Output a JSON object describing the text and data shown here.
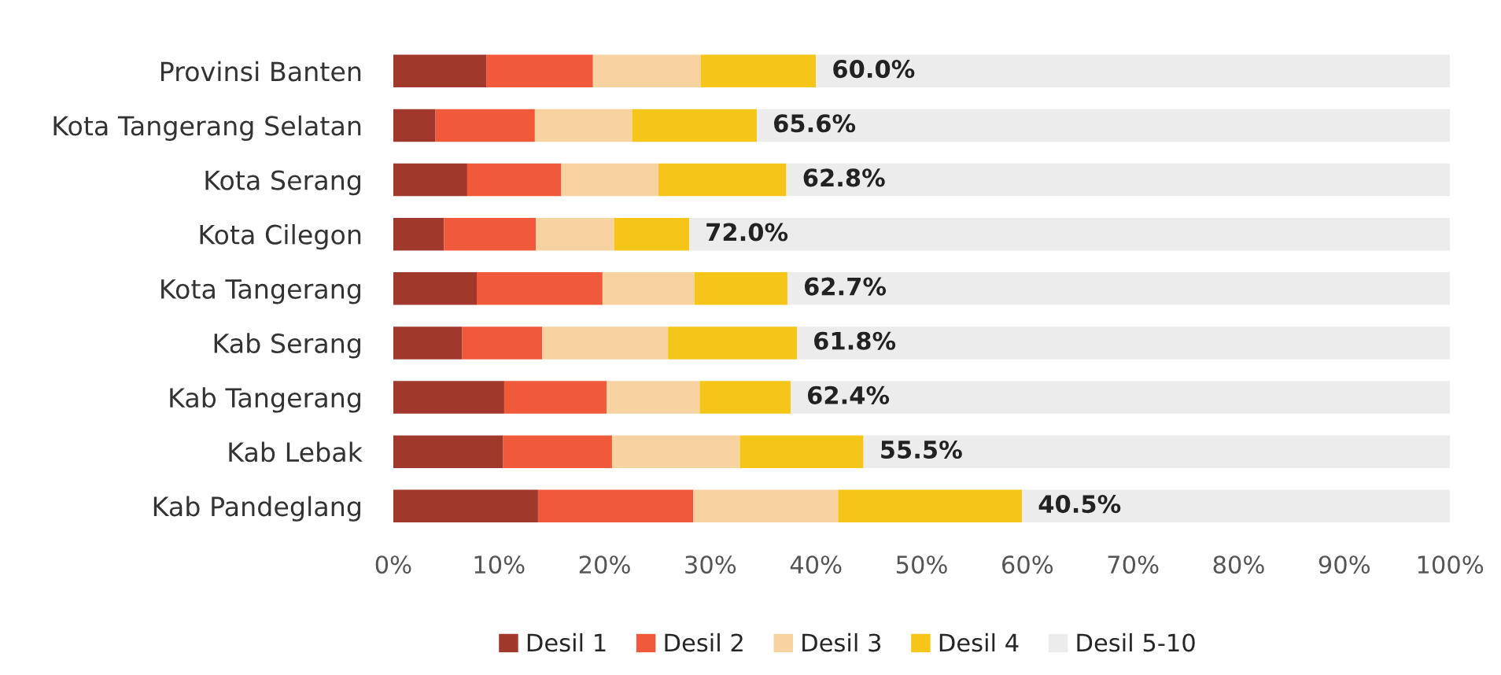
{
  "chart_data": {
    "type": "bar",
    "orientation": "horizontal",
    "stacked": true,
    "categories": [
      "Provinsi Banten",
      "Kota Tangerang Selatan",
      "Kota Serang",
      "Kota Cilegon",
      "Kota Tangerang",
      "Kab Serang",
      "Kab Tangerang",
      "Kab Lebak",
      "Kab Pandeglang"
    ],
    "series": [
      {
        "name": "Desil 1",
        "color": "#a0392b",
        "values": [
          8.8,
          4.0,
          7.0,
          4.8,
          7.9,
          6.5,
          10.5,
          10.4,
          13.7
        ]
      },
      {
        "name": "Desil 2",
        "color": "#f05a3a",
        "values": [
          10.1,
          9.4,
          8.9,
          8.7,
          11.9,
          7.6,
          9.7,
          10.3,
          14.7
        ]
      },
      {
        "name": "Desil 3",
        "color": "#f6d3a0",
        "values": [
          10.2,
          9.2,
          9.2,
          7.4,
          8.7,
          11.9,
          8.8,
          12.1,
          13.7
        ]
      },
      {
        "name": "Desil 4",
        "color": "#f5c518",
        "values": [
          10.9,
          11.8,
          12.1,
          7.1,
          8.8,
          12.2,
          8.6,
          11.7,
          17.4
        ]
      },
      {
        "name": "Desil 5-10",
        "color": "#ececec",
        "values": [
          60.0,
          65.6,
          62.8,
          72.0,
          62.7,
          61.8,
          62.4,
          55.5,
          40.5
        ],
        "value_labels": [
          "60.0%",
          "65.6%",
          "62.8%",
          "72.0%",
          "62.7%",
          "61.8%",
          "62.4%",
          "55.5%",
          "40.5%"
        ]
      }
    ],
    "xlim": [
      0,
      100
    ],
    "xticks": [
      {
        "value": 0,
        "label": "0%"
      },
      {
        "value": 10,
        "label": "10%"
      },
      {
        "value": 20,
        "label": "20%"
      },
      {
        "value": 30,
        "label": "30%"
      },
      {
        "value": 40,
        "label": "40%"
      },
      {
        "value": 50,
        "label": "50%"
      },
      {
        "value": 60,
        "label": "60%"
      },
      {
        "value": 70,
        "label": "70%"
      },
      {
        "value": 80,
        "label": "80%"
      },
      {
        "value": 90,
        "label": "90%"
      },
      {
        "value": 100,
        "label": "100%"
      }
    ],
    "grid": false,
    "legend": "bottom"
  }
}
